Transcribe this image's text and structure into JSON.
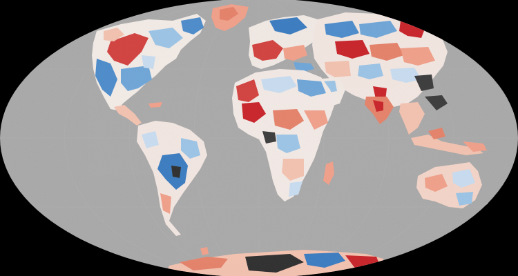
{
  "map": {
    "projection": "Mollweide",
    "background_color": "#000000",
    "ocean_color": "#a9a9a9",
    "no_data_color": "#3c3c3c",
    "color_scale": {
      "cold": "#2c6fb7",
      "cool": "#9cc4e6",
      "neutral": "#f4efe9",
      "warm": "#f0a08a",
      "hot": "#c8242a"
    },
    "labels_printed": false
  }
}
